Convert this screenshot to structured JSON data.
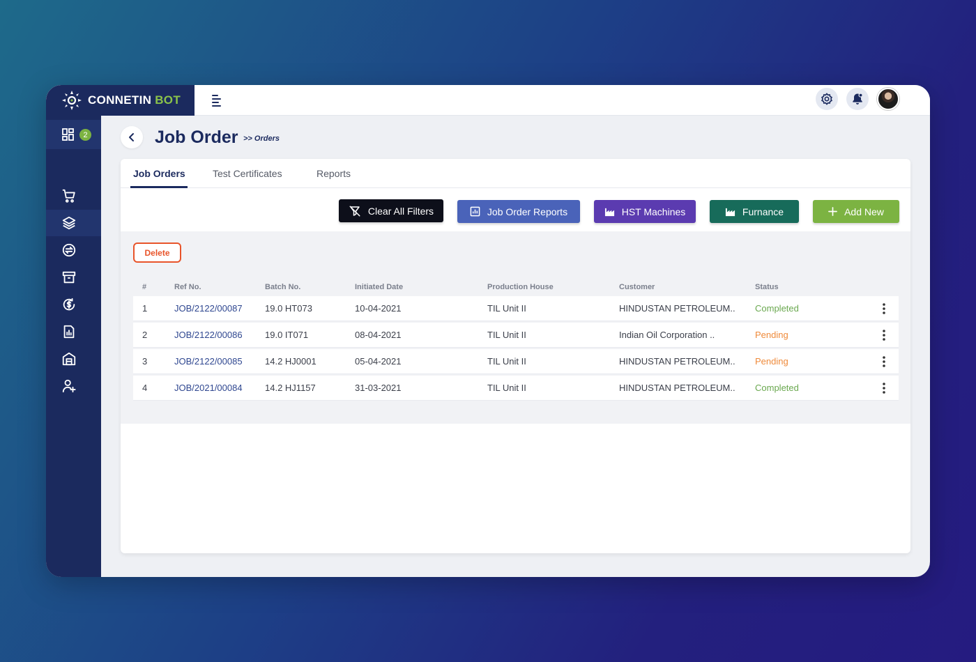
{
  "brand": {
    "name_part1": "CONNETIN",
    "name_part2": "BOT"
  },
  "sidebar": {
    "dashboard_badge": "2"
  },
  "page": {
    "title": "Job Order",
    "breadcrumb": ">> Orders"
  },
  "tabs": [
    {
      "label": "Job Orders",
      "active": true
    },
    {
      "label": "Test Certificates",
      "active": false
    },
    {
      "label": "Reports",
      "active": false
    }
  ],
  "toolbar": {
    "clear_filters": "Clear All Filters",
    "job_order_reports": "Job Order Reports",
    "hst_machines": "HST Machines",
    "furnance": "Furnance",
    "add_new": "Add New",
    "delete": "Delete"
  },
  "colors": {
    "brand_navy": "#1b2a5e",
    "accent_green": "#7cb342",
    "clear_filters_bg": "#0d0f1a",
    "job_order_reports_bg": "#4a63b9",
    "hst_machines_bg": "#5b3bb0",
    "furnance_bg": "#176b5a",
    "add_new_bg": "#7cb342",
    "completed": "#6aa84f",
    "pending": "#ef8a3a",
    "delete": "#e8542a"
  },
  "table": {
    "headers": [
      "#",
      "Ref No.",
      "Batch No.",
      "Initiated Date",
      "Production House",
      "Customer",
      "Status"
    ],
    "rows": [
      {
        "num": "1",
        "ref": "JOB/2122/00087",
        "batch": "19.0 HT073",
        "date": "10-04-2021",
        "house": "TIL Unit II",
        "customer": "HINDUSTAN PETROLEUM..",
        "status": "Completed"
      },
      {
        "num": "2",
        "ref": "JOB/2122/00086",
        "batch": "19.0 IT071",
        "date": "08-04-2021",
        "house": "TIL Unit II",
        "customer": "Indian Oil Corporation ..",
        "status": "Pending"
      },
      {
        "num": "3",
        "ref": "JOB/2122/00085",
        "batch": "14.2 HJ0001",
        "date": "05-04-2021",
        "house": "TIL Unit II",
        "customer": "HINDUSTAN PETROLEUM..",
        "status": "Pending"
      },
      {
        "num": "4",
        "ref": "JOB/2021/00084",
        "batch": "14.2 HJ1157",
        "date": "31-03-2021",
        "house": "TIL Unit II",
        "customer": "HINDUSTAN PETROLEUM..",
        "status": "Completed"
      }
    ]
  }
}
